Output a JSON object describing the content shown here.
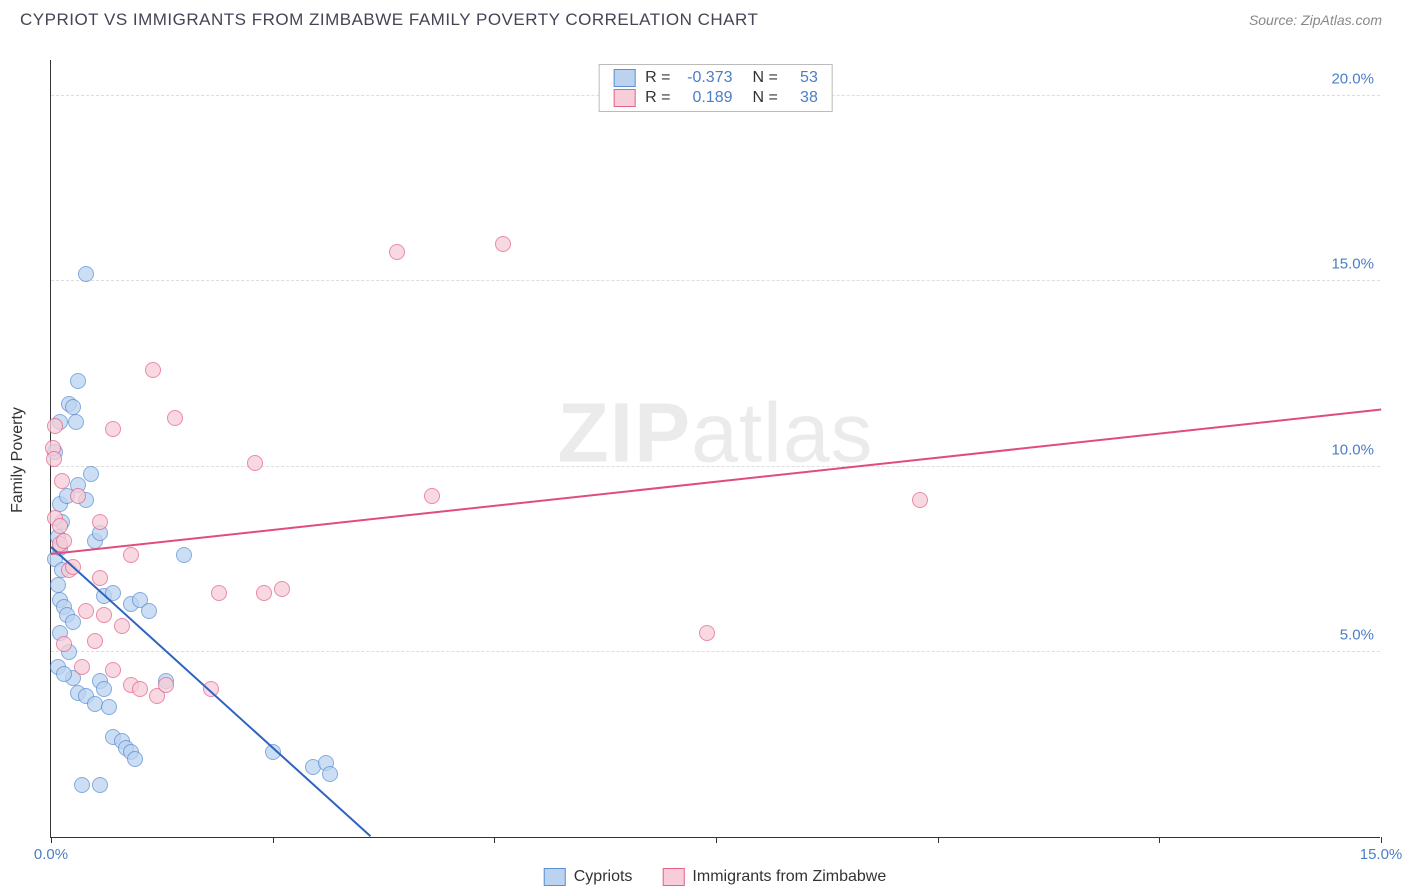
{
  "header": {
    "title": "CYPRIOT VS IMMIGRANTS FROM ZIMBABWE FAMILY POVERTY CORRELATION CHART",
    "source": "Source: ZipAtlas.com"
  },
  "watermark": {
    "bold": "ZIP",
    "rest": "atlas"
  },
  "chart": {
    "type": "scatter",
    "y_axis_label": "Family Poverty",
    "background_color": "#ffffff",
    "grid_color": "#dddddd",
    "axis_color": "#333333",
    "tick_label_color": "#4a7ec9",
    "xlim": [
      0,
      15
    ],
    "ylim": [
      0,
      21
    ],
    "y_ticks": [
      5.0,
      10.0,
      15.0,
      20.0
    ],
    "y_tick_labels": [
      "5.0%",
      "10.0%",
      "15.0%",
      "20.0%"
    ],
    "x_ticks": [
      0,
      2.5,
      5.0,
      7.5,
      10.0,
      12.5,
      15.0
    ],
    "x_tick_labels": [
      "0.0%",
      "",
      "",
      "",
      "",
      "",
      "15.0%"
    ],
    "stats_box": {
      "rows": [
        {
          "r_label": "R =",
          "r_value": "-0.373",
          "n_label": "N =",
          "n_value": "53"
        },
        {
          "r_label": "R =",
          "r_value": "0.189",
          "n_label": "N =",
          "n_value": "38"
        }
      ]
    },
    "legend": {
      "items": [
        {
          "label": "Cypriots"
        },
        {
          "label": "Immigrants from Zimbabwe"
        }
      ]
    },
    "series": [
      {
        "name": "Cypriots",
        "fill_color": "#bcd3ef",
        "fill_opacity": 0.75,
        "stroke_color": "#5b8fd6",
        "marker_size": 16,
        "trend": {
          "x1": 0,
          "y1": 7.8,
          "x2": 3.6,
          "y2": 0,
          "color": "#2e63c0",
          "width": 2
        },
        "points": [
          [
            0.05,
            7.5
          ],
          [
            0.08,
            8.1
          ],
          [
            0.1,
            9.0
          ],
          [
            0.12,
            8.5
          ],
          [
            0.1,
            6.4
          ],
          [
            0.15,
            6.2
          ],
          [
            0.1,
            7.8
          ],
          [
            0.2,
            11.7
          ],
          [
            0.25,
            11.6
          ],
          [
            0.3,
            12.3
          ],
          [
            0.4,
            15.2
          ],
          [
            0.1,
            11.2
          ],
          [
            0.05,
            10.4
          ],
          [
            0.28,
            11.2
          ],
          [
            0.18,
            9.2
          ],
          [
            0.3,
            9.5
          ],
          [
            0.4,
            9.1
          ],
          [
            0.5,
            8.0
          ],
          [
            0.55,
            8.2
          ],
          [
            0.6,
            6.5
          ],
          [
            0.7,
            6.6
          ],
          [
            0.9,
            6.3
          ],
          [
            1.0,
            6.4
          ],
          [
            1.1,
            6.1
          ],
          [
            1.3,
            4.2
          ],
          [
            1.5,
            7.6
          ],
          [
            0.1,
            5.5
          ],
          [
            0.2,
            5.0
          ],
          [
            0.25,
            4.3
          ],
          [
            0.3,
            3.9
          ],
          [
            0.4,
            3.8
          ],
          [
            0.5,
            3.6
          ],
          [
            0.55,
            4.2
          ],
          [
            0.6,
            4.0
          ],
          [
            0.65,
            3.5
          ],
          [
            0.7,
            2.7
          ],
          [
            0.8,
            2.6
          ],
          [
            0.85,
            2.4
          ],
          [
            0.9,
            2.3
          ],
          [
            0.95,
            2.1
          ],
          [
            0.35,
            1.4
          ],
          [
            0.55,
            1.4
          ],
          [
            2.5,
            2.3
          ],
          [
            2.95,
            1.9
          ],
          [
            3.1,
            2.0
          ],
          [
            3.15,
            1.7
          ],
          [
            0.08,
            6.8
          ],
          [
            0.12,
            7.2
          ],
          [
            0.18,
            6.0
          ],
          [
            0.25,
            5.8
          ],
          [
            0.45,
            9.8
          ],
          [
            0.08,
            4.6
          ],
          [
            0.15,
            4.4
          ]
        ]
      },
      {
        "name": "Immigrants from Zimbabwe",
        "fill_color": "#f6cdd8",
        "fill_opacity": 0.75,
        "stroke_color": "#e5638b",
        "marker_size": 16,
        "trend": {
          "x1": 0,
          "y1": 7.6,
          "x2": 15,
          "y2": 11.5,
          "color": "#e14d7b",
          "width": 2
        },
        "points": [
          [
            0.02,
            10.5
          ],
          [
            0.03,
            10.2
          ],
          [
            0.05,
            8.6
          ],
          [
            0.1,
            8.4
          ],
          [
            0.1,
            7.9
          ],
          [
            0.15,
            8.0
          ],
          [
            0.2,
            7.2
          ],
          [
            0.25,
            7.3
          ],
          [
            0.3,
            9.2
          ],
          [
            0.55,
            8.5
          ],
          [
            0.7,
            11.0
          ],
          [
            0.9,
            7.6
          ],
          [
            1.15,
            12.6
          ],
          [
            1.4,
            11.3
          ],
          [
            2.3,
            10.1
          ],
          [
            0.5,
            5.3
          ],
          [
            0.6,
            6.0
          ],
          [
            0.7,
            4.5
          ],
          [
            0.8,
            5.7
          ],
          [
            0.9,
            4.1
          ],
          [
            1.0,
            4.0
          ],
          [
            1.2,
            3.8
          ],
          [
            1.3,
            4.1
          ],
          [
            1.8,
            4.0
          ],
          [
            1.9,
            6.6
          ],
          [
            2.4,
            6.6
          ],
          [
            2.6,
            6.7
          ],
          [
            3.9,
            15.8
          ],
          [
            5.1,
            16.0
          ],
          [
            4.3,
            9.2
          ],
          [
            7.4,
            5.5
          ],
          [
            9.8,
            9.1
          ],
          [
            0.4,
            6.1
          ],
          [
            0.55,
            7.0
          ],
          [
            0.15,
            5.2
          ],
          [
            0.35,
            4.6
          ],
          [
            0.05,
            11.1
          ],
          [
            0.12,
            9.6
          ]
        ]
      }
    ]
  }
}
